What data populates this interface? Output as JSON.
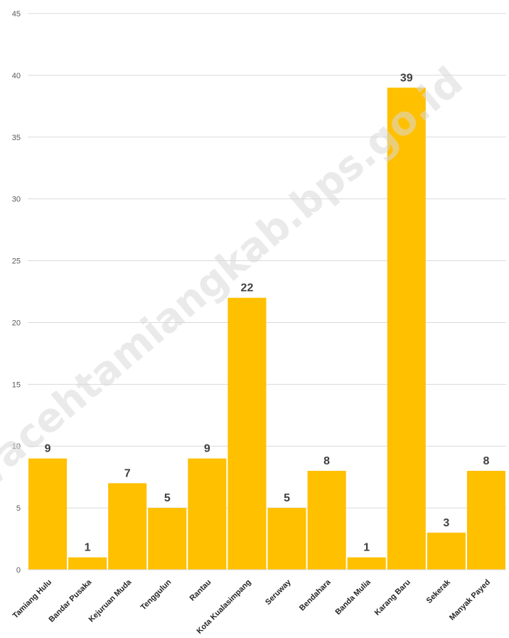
{
  "watermark": "https://acehtamiangkab.bps.go.id",
  "chart_data": {
    "type": "bar",
    "title": "",
    "xlabel": "",
    "ylabel": "",
    "categories": [
      "Tamiang Hulu",
      "Bandar Pusaka",
      "Kejuruan Muda",
      "Tenggulun",
      "Rantau",
      "Kota Kualasimpang",
      "Seruway",
      "Bendahara",
      "Banda Mulia",
      "Karang Baru",
      "Sekerak",
      "Manyak Payed"
    ],
    "values": [
      9,
      1,
      7,
      5,
      9,
      22,
      5,
      8,
      1,
      39,
      3,
      8
    ],
    "ylim": [
      0,
      45
    ],
    "yticks": [
      0,
      5,
      10,
      15,
      20,
      25,
      30,
      35,
      40,
      45
    ],
    "grid": true,
    "legend": "none",
    "bar_color": "#FFC000",
    "gridline_color": "#D9D9D9"
  }
}
